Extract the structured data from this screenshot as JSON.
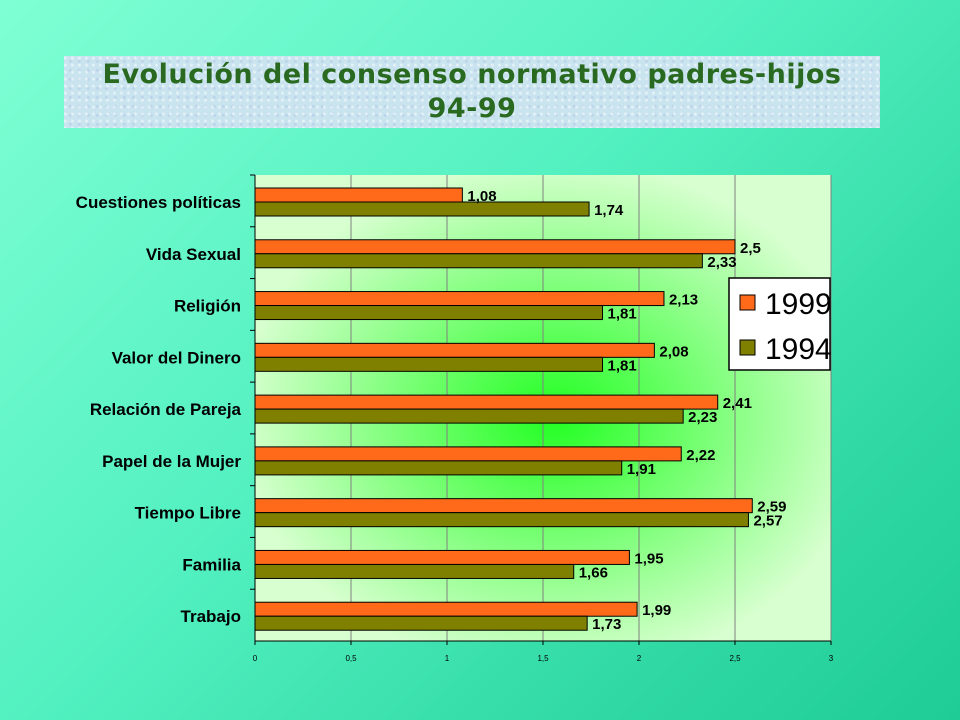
{
  "title_lines": [
    "Evolución del consenso normativo padres-hijos",
    "94-99"
  ],
  "colors": {
    "series_1999": "#ff6a1a",
    "series_1994": "#808000",
    "plot_bg": "#d8ffd0",
    "plot_glow": "#22ff22"
  },
  "chart_data": {
    "type": "bar",
    "orientation": "horizontal",
    "title": "Evolución del consenso normativo padres-hijos 94-99",
    "categories": [
      "Cuestiones políticas",
      "Vida Sexual",
      "Religión",
      "Valor del Dinero",
      "Relación de Pareja",
      "Papel de la Mujer",
      "Tiempo Libre",
      "Familia",
      "Trabajo"
    ],
    "series": [
      {
        "name": "1999",
        "values": [
          1.08,
          2.5,
          2.13,
          2.08,
          2.41,
          2.22,
          2.59,
          1.95,
          1.99
        ],
        "labels": [
          "1,08",
          "2,5",
          "2,13",
          "2,08",
          "2,41",
          "2,22",
          "2,59",
          "1,95",
          "1,99"
        ]
      },
      {
        "name": "1994",
        "values": [
          1.74,
          2.33,
          1.81,
          1.81,
          2.23,
          1.91,
          2.57,
          1.66,
          1.73
        ],
        "labels": [
          "1,74",
          "2,33",
          "1,81",
          "1,81",
          "2,23",
          "1,91",
          "2,57",
          "1,66",
          "1,73"
        ]
      }
    ],
    "xlim": [
      0,
      3
    ],
    "xticks": [
      0,
      0.5,
      1,
      1.5,
      2,
      2.5,
      3
    ],
    "xtick_labels": [
      "0",
      "0,5",
      "1",
      "1,5",
      "2",
      "2,5",
      "3"
    ],
    "grid": true,
    "legend_position": "right"
  }
}
